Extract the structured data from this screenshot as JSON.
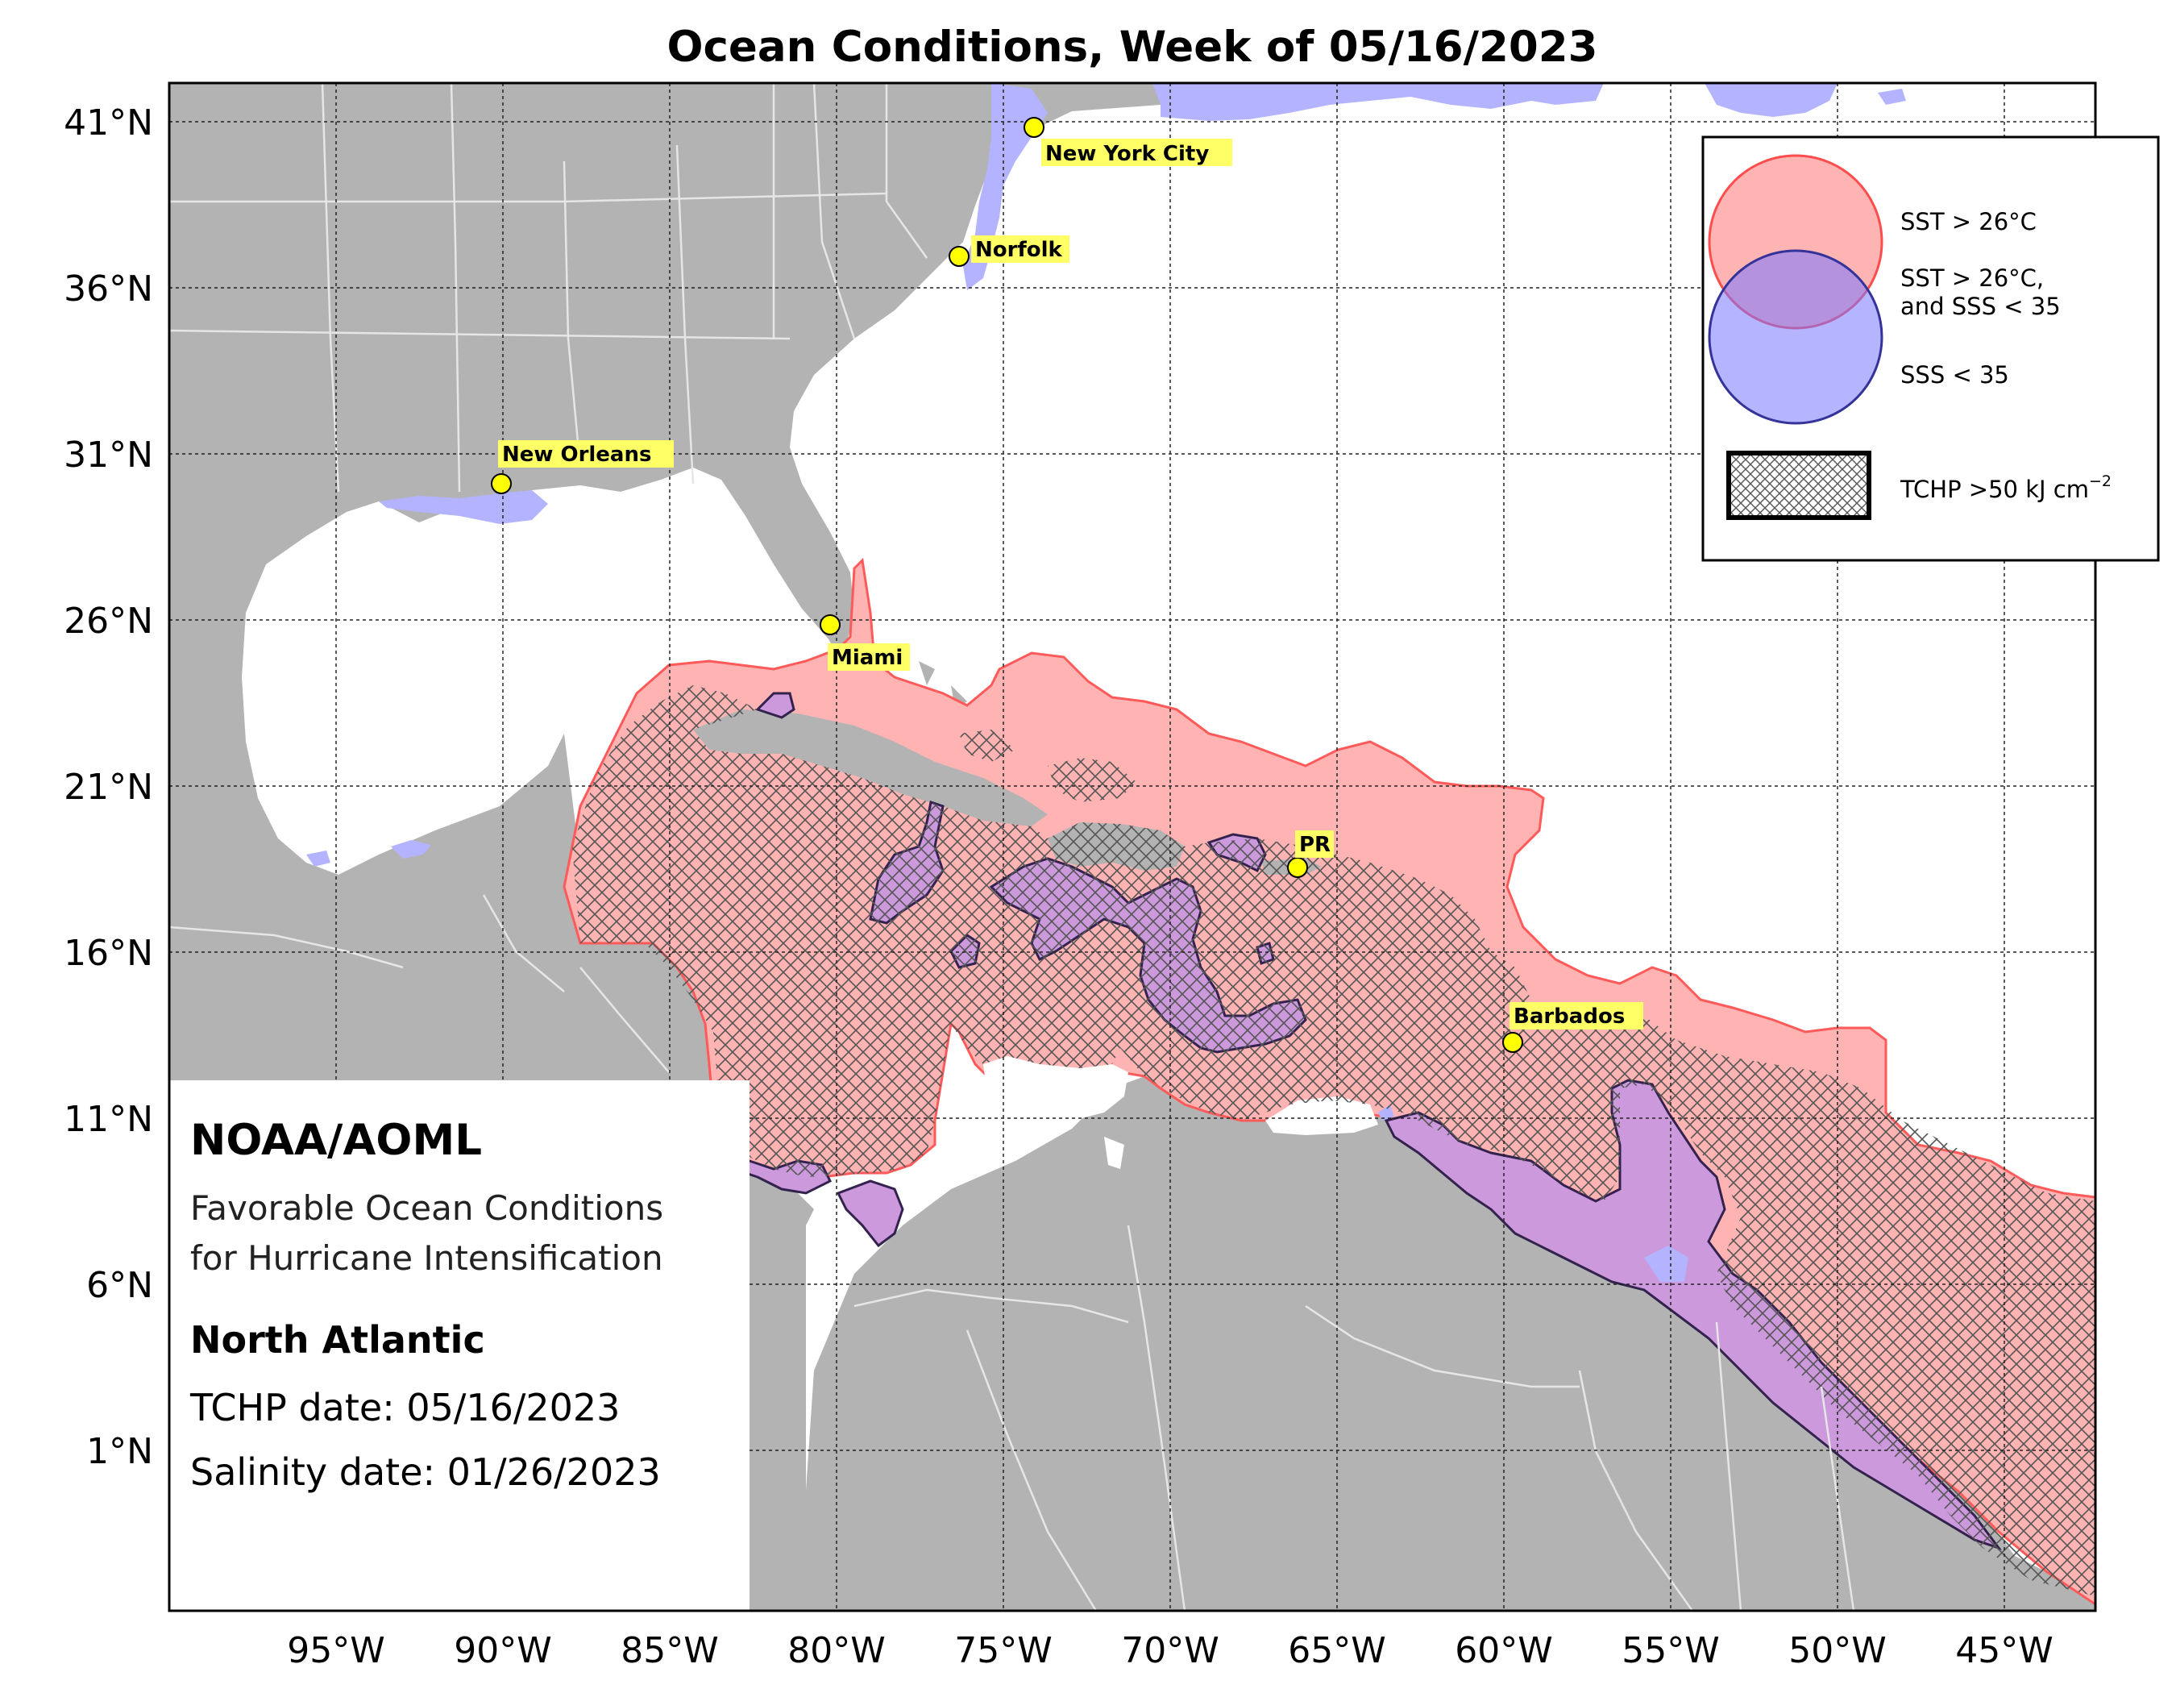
{
  "title": "Ocean Conditions, Week of 05/16/2023",
  "lat_labels": [
    "41°N",
    "36°N",
    "31°N",
    "26°N",
    "21°N",
    "16°N",
    "11°N",
    "6°N",
    "1°N"
  ],
  "lon_labels": [
    "95°W",
    "90°W",
    "85°W",
    "80°W",
    "75°W",
    "70°W",
    "65°W",
    "60°W",
    "55°W",
    "50°W",
    "45°W"
  ],
  "cities": [
    {
      "name": "New York City"
    },
    {
      "name": "Norfolk"
    },
    {
      "name": "New Orleans"
    },
    {
      "name": "Miami"
    },
    {
      "name": "PR"
    },
    {
      "name": "Barbados"
    }
  ],
  "legend": {
    "sst": "SST > 26°C",
    "both_line1": "SST > 26°C,",
    "both_line2": "and SSS < 35",
    "sss": "SSS < 35",
    "tchp_prefix": "TCHP >50 kJ cm",
    "tchp_exp": "−2"
  },
  "info": {
    "org": "NOAA/AOML",
    "desc_line1": "Favorable Ocean Conditions",
    "desc_line2": "for Hurricane Intensification",
    "region": "North Atlantic",
    "tchp_date": "TCHP date: 05/16/2023",
    "salinity_date": "Salinity date: 01/26/2023"
  },
  "colors": {
    "land": "#b3b3b3",
    "ocean": "#ffffff",
    "sst": "#ffb3b3",
    "sst_edge": "#ff4d4d",
    "sss": "#b3b3ff",
    "both": "#cc99dd",
    "both_edge": "#33224d",
    "city_marker": "#ffff00"
  }
}
